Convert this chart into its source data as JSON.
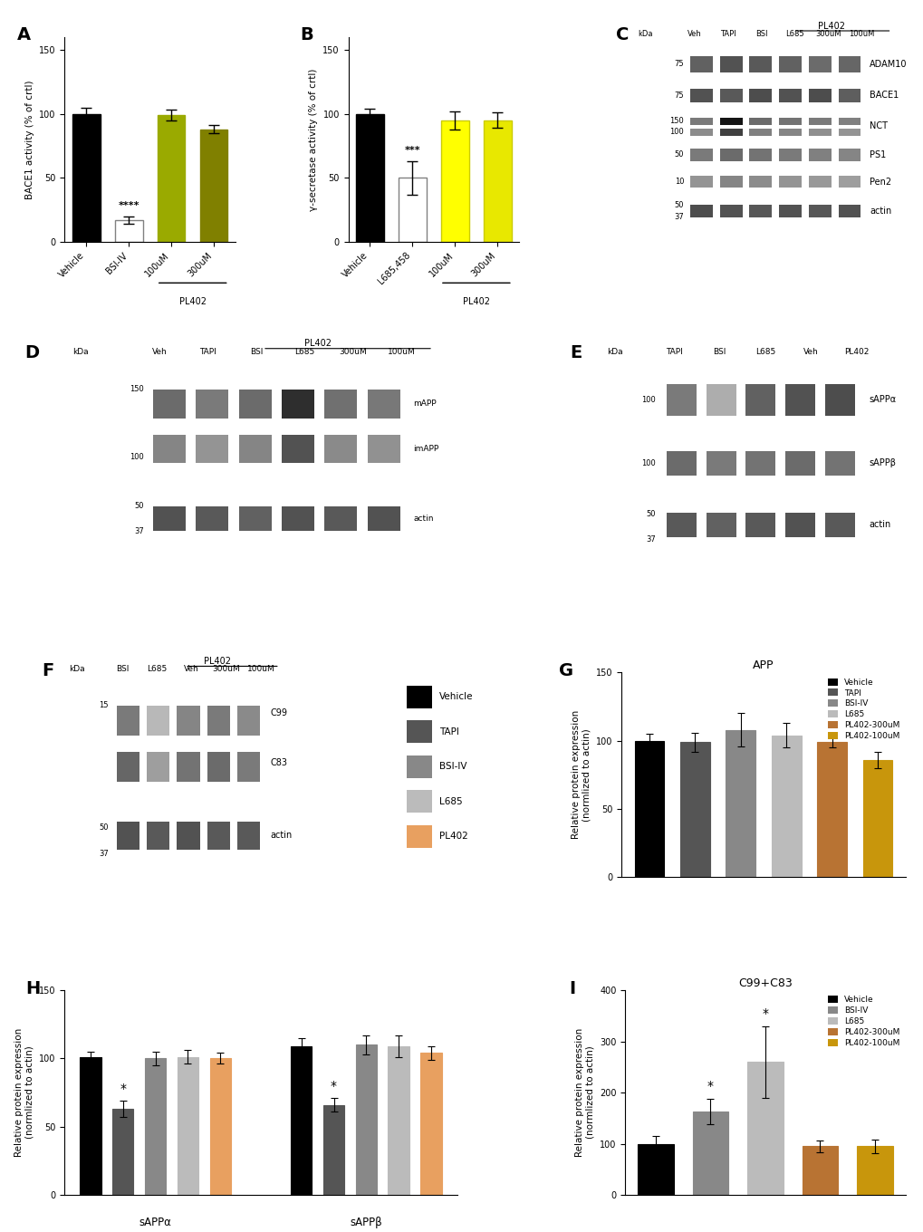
{
  "panel_A": {
    "categories": [
      "Vehicle",
      "BSI-IV",
      "100uM",
      "300uM"
    ],
    "values": [
      100,
      17,
      99,
      88
    ],
    "errors": [
      5,
      3,
      4,
      3
    ],
    "colors": [
      "#000000",
      "#ffffff",
      "#9aaa00",
      "#808000"
    ],
    "bar_edge_colors": [
      "#000000",
      "#808080",
      "#9aaa00",
      "#808000"
    ],
    "ylabel": "BACE1 activity (% of crtl)",
    "ylim": [
      0,
      160
    ],
    "yticks": [
      0,
      50,
      100,
      150
    ],
    "significance": {
      "idx": 1,
      "text": "****"
    },
    "pl402_range": [
      2,
      3
    ]
  },
  "panel_B": {
    "categories": [
      "Vehicle",
      "L685,458",
      "100uM",
      "300uM"
    ],
    "values": [
      100,
      50,
      95,
      95
    ],
    "errors": [
      4,
      13,
      7,
      6
    ],
    "colors": [
      "#000000",
      "#ffffff",
      "#ffff00",
      "#e8e800"
    ],
    "bar_edge_colors": [
      "#000000",
      "#808080",
      "#cccc00",
      "#cccc00"
    ],
    "ylabel": "γ-secretase activity (% of crtl)",
    "ylim": [
      0,
      160
    ],
    "yticks": [
      0,
      50,
      100,
      150
    ],
    "significance": {
      "idx": 1,
      "text": "***"
    },
    "pl402_range": [
      2,
      3
    ]
  },
  "panel_G": {
    "categories": [
      "Vehicle",
      "TAPI",
      "BSI-IV",
      "L685",
      "PL402-300uM",
      "PL402-100uM"
    ],
    "values": [
      100,
      99,
      108,
      104,
      99,
      86
    ],
    "errors": [
      5,
      7,
      12,
      9,
      4,
      6
    ],
    "colors": [
      "#000000",
      "#555555",
      "#888888",
      "#bbbbbb",
      "#b87333",
      "#c8960c"
    ],
    "ylabel": "Relative protein expression\n(normlized to actin)",
    "ylim": [
      0,
      150
    ],
    "yticks": [
      0,
      50,
      100,
      150
    ],
    "title": "APP",
    "legend_labels": [
      "Vehicle",
      "TAPI",
      "BSI-IV",
      "L685",
      "PL402-300uM",
      "PL402-100uM"
    ],
    "legend_colors": [
      "#000000",
      "#555555",
      "#888888",
      "#bbbbbb",
      "#b87333",
      "#c8960c"
    ]
  },
  "panel_H": {
    "categories_left": [
      "Vehicle",
      "TAPI",
      "BSI-IV",
      "L685",
      "PL402"
    ],
    "categories_right": [
      "Vehicle",
      "TAPI",
      "BSI-IV",
      "L685",
      "PL402"
    ],
    "values_left": [
      101,
      63,
      100,
      101,
      100
    ],
    "errors_left": [
      4,
      6,
      5,
      5,
      4
    ],
    "values_right": [
      109,
      66,
      110,
      109,
      104
    ],
    "errors_right": [
      6,
      5,
      7,
      8,
      5
    ],
    "colors": [
      "#000000",
      "#555555",
      "#888888",
      "#bbbbbb",
      "#e8a060"
    ],
    "ylabel": "Relative protein expression\n(normlized to actin)",
    "ylim": [
      0,
      150
    ],
    "yticks": [
      0,
      50,
      100,
      150
    ],
    "title_left": "sAPPα",
    "title_right": "sAPPβ",
    "legend_labels": [
      "Vehicle",
      "TAPI",
      "BSI-IV",
      "L685",
      "PL402"
    ],
    "legend_colors": [
      "#000000",
      "#555555",
      "#888888",
      "#bbbbbb",
      "#e8a060"
    ]
  },
  "panel_I": {
    "categories": [
      "Vehicle",
      "BSI-IV",
      "L685",
      "PL402-300uM",
      "PL402-100uM"
    ],
    "values": [
      100,
      163,
      260,
      95,
      95
    ],
    "errors": [
      15,
      25,
      70,
      12,
      13
    ],
    "colors": [
      "#000000",
      "#888888",
      "#bbbbbb",
      "#b87333",
      "#c8960c"
    ],
    "ylabel": "Relative protein expression\n(normlized to actin)",
    "ylim": [
      0,
      400
    ],
    "yticks": [
      0,
      100,
      200,
      300,
      400
    ],
    "title": "C99+C83",
    "significance_indices": [
      1,
      2
    ],
    "legend_labels": [
      "Vehicle",
      "BSI-IV",
      "L685",
      "PL402-300uM",
      "PL402-100uM"
    ],
    "legend_colors": [
      "#000000",
      "#888888",
      "#bbbbbb",
      "#b87333",
      "#c8960c"
    ]
  }
}
